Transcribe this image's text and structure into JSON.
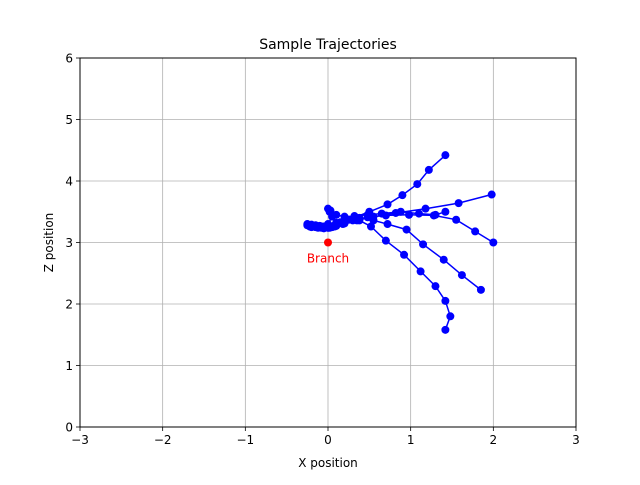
{
  "chart_data": {
    "type": "line",
    "title": "Sample Trajectories",
    "xlabel": "X position",
    "ylabel": "Z position",
    "xlim": [
      -3,
      3
    ],
    "ylim": [
      0,
      6
    ],
    "xticks": [
      -3,
      -2,
      -1,
      0,
      1,
      2,
      3
    ],
    "yticks": [
      0,
      1,
      2,
      3,
      4,
      5,
      6
    ],
    "grid": true,
    "series_color": "#0000ff",
    "series": [
      {
        "values": [
          [
            -0.25,
            3.28
          ],
          [
            -0.2,
            3.27
          ],
          [
            -0.15,
            3.26
          ],
          [
            -0.1,
            3.25
          ],
          [
            -0.05,
            3.24
          ],
          [
            0.0,
            3.24
          ],
          [
            0.05,
            3.25
          ],
          [
            0.1,
            3.27
          ],
          [
            0.2,
            3.31
          ],
          [
            0.35,
            3.36
          ],
          [
            0.55,
            3.42
          ],
          [
            0.82,
            3.48
          ],
          [
            1.18,
            3.55
          ],
          [
            1.58,
            3.64
          ],
          [
            1.98,
            3.78
          ]
        ]
      },
      {
        "values": [
          [
            -0.25,
            3.3
          ],
          [
            -0.2,
            3.29
          ],
          [
            -0.15,
            3.28
          ],
          [
            -0.1,
            3.27
          ],
          [
            -0.05,
            3.26
          ],
          [
            0.0,
            3.25
          ],
          [
            0.05,
            3.26
          ],
          [
            0.1,
            3.29
          ],
          [
            0.2,
            3.34
          ],
          [
            0.32,
            3.41
          ],
          [
            0.5,
            3.5
          ],
          [
            0.72,
            3.62
          ],
          [
            0.9,
            3.77
          ],
          [
            1.08,
            3.95
          ],
          [
            1.22,
            4.18
          ],
          [
            1.42,
            4.42
          ]
        ]
      },
      {
        "values": [
          [
            -0.22,
            3.26
          ],
          [
            -0.15,
            3.25
          ],
          [
            -0.08,
            3.24
          ],
          [
            0.0,
            3.24
          ],
          [
            0.08,
            3.26
          ],
          [
            0.18,
            3.3
          ],
          [
            0.3,
            3.36
          ],
          [
            0.48,
            3.41
          ],
          [
            0.7,
            3.44
          ],
          [
            0.98,
            3.45
          ],
          [
            1.28,
            3.44
          ],
          [
            1.55,
            3.37
          ],
          [
            1.78,
            3.18
          ],
          [
            2.0,
            3.0
          ]
        ]
      },
      {
        "values": [
          [
            -0.2,
            3.25
          ],
          [
            -0.12,
            3.24
          ],
          [
            -0.05,
            3.23
          ],
          [
            0.02,
            3.24
          ],
          [
            0.08,
            3.28
          ],
          [
            0.15,
            3.33
          ],
          [
            0.25,
            3.37
          ],
          [
            0.38,
            3.36
          ],
          [
            0.52,
            3.26
          ],
          [
            0.7,
            3.03
          ],
          [
            0.92,
            2.8
          ],
          [
            1.12,
            2.53
          ],
          [
            1.3,
            2.29
          ],
          [
            1.42,
            2.05
          ],
          [
            1.48,
            1.8
          ],
          [
            1.42,
            1.58
          ]
        ]
      },
      {
        "values": [
          [
            -0.2,
            3.27
          ],
          [
            -0.1,
            3.26
          ],
          [
            0.0,
            3.27
          ],
          [
            0.1,
            3.32
          ],
          [
            0.22,
            3.37
          ],
          [
            0.38,
            3.4
          ],
          [
            0.55,
            3.36
          ],
          [
            0.72,
            3.3
          ],
          [
            0.95,
            3.21
          ],
          [
            1.15,
            2.97
          ],
          [
            1.4,
            2.72
          ],
          [
            1.62,
            2.47
          ],
          [
            1.85,
            2.23
          ]
        ]
      },
      {
        "values": [
          [
            -0.15,
            3.26
          ],
          [
            -0.08,
            3.26
          ],
          [
            0.0,
            3.3
          ],
          [
            0.05,
            3.42
          ],
          [
            0.03,
            3.52
          ],
          [
            0.0,
            3.55
          ],
          [
            0.02,
            3.5
          ],
          [
            0.1,
            3.45
          ],
          [
            0.2,
            3.42
          ],
          [
            0.32,
            3.43
          ],
          [
            0.48,
            3.45
          ],
          [
            0.65,
            3.47
          ],
          [
            0.88,
            3.5
          ],
          [
            1.1,
            3.47
          ],
          [
            1.3,
            3.45
          ],
          [
            1.42,
            3.5
          ]
        ]
      }
    ],
    "annotation": {
      "label": "Branch",
      "x": 0,
      "y": 3,
      "color": "#ff0000"
    }
  }
}
